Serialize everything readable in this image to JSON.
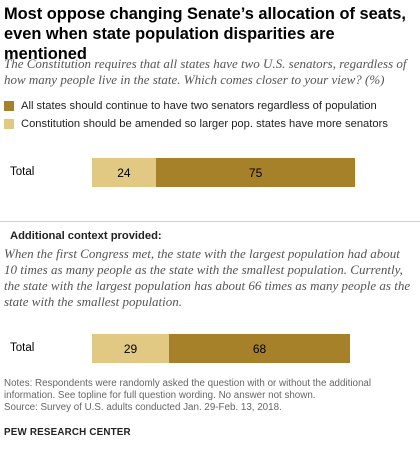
{
  "title": "Most oppose changing Senate’s allocation of seats, even when state population disparities are mentioned",
  "subtitle": "The Constitution requires that all states have two U.S. senators, regardless of how many people live in the state. Which comes closer to your view? (%)",
  "colors": {
    "keep_two": "#a7812a",
    "amend": "#e1c883"
  },
  "context_heading": "Additional context provided:",
  "context_text": "When the first Congress met, the state with the largest population had about 10 times as many people as the state with the smallest population. Currently, the state with the largest population has about 66 times as many people as the state with the smallest population.",
  "notes": "Notes: Respondents were randomly asked the question with or without the additional information. See topline for full question wording. No answer not shown.",
  "source": "Source: Survey of U.S. adults conducted Jan. 29-Feb. 13, 2018.",
  "brand": "PEW RESEARCH CENTER",
  "chart_data": [
    {
      "type": "bar",
      "stacked": true,
      "orientation": "horizontal",
      "categories": [
        "Total"
      ],
      "series": [
        {
          "name": "Constitution should be amended so larger pop. states have more senators",
          "values": [
            24
          ]
        },
        {
          "name": "All states should continue to have two senators regardless of population",
          "values": [
            75
          ]
        }
      ],
      "xlim": [
        0,
        100
      ],
      "legend": "top-left",
      "grid": false
    },
    {
      "type": "bar",
      "stacked": true,
      "orientation": "horizontal",
      "categories": [
        "Total"
      ],
      "series": [
        {
          "name": "Constitution should be amended so larger pop. states have more senators",
          "values": [
            29
          ]
        },
        {
          "name": "All states should continue to have two senators regardless of population",
          "values": [
            68
          ]
        }
      ],
      "xlim": [
        0,
        100
      ],
      "grid": false
    }
  ]
}
